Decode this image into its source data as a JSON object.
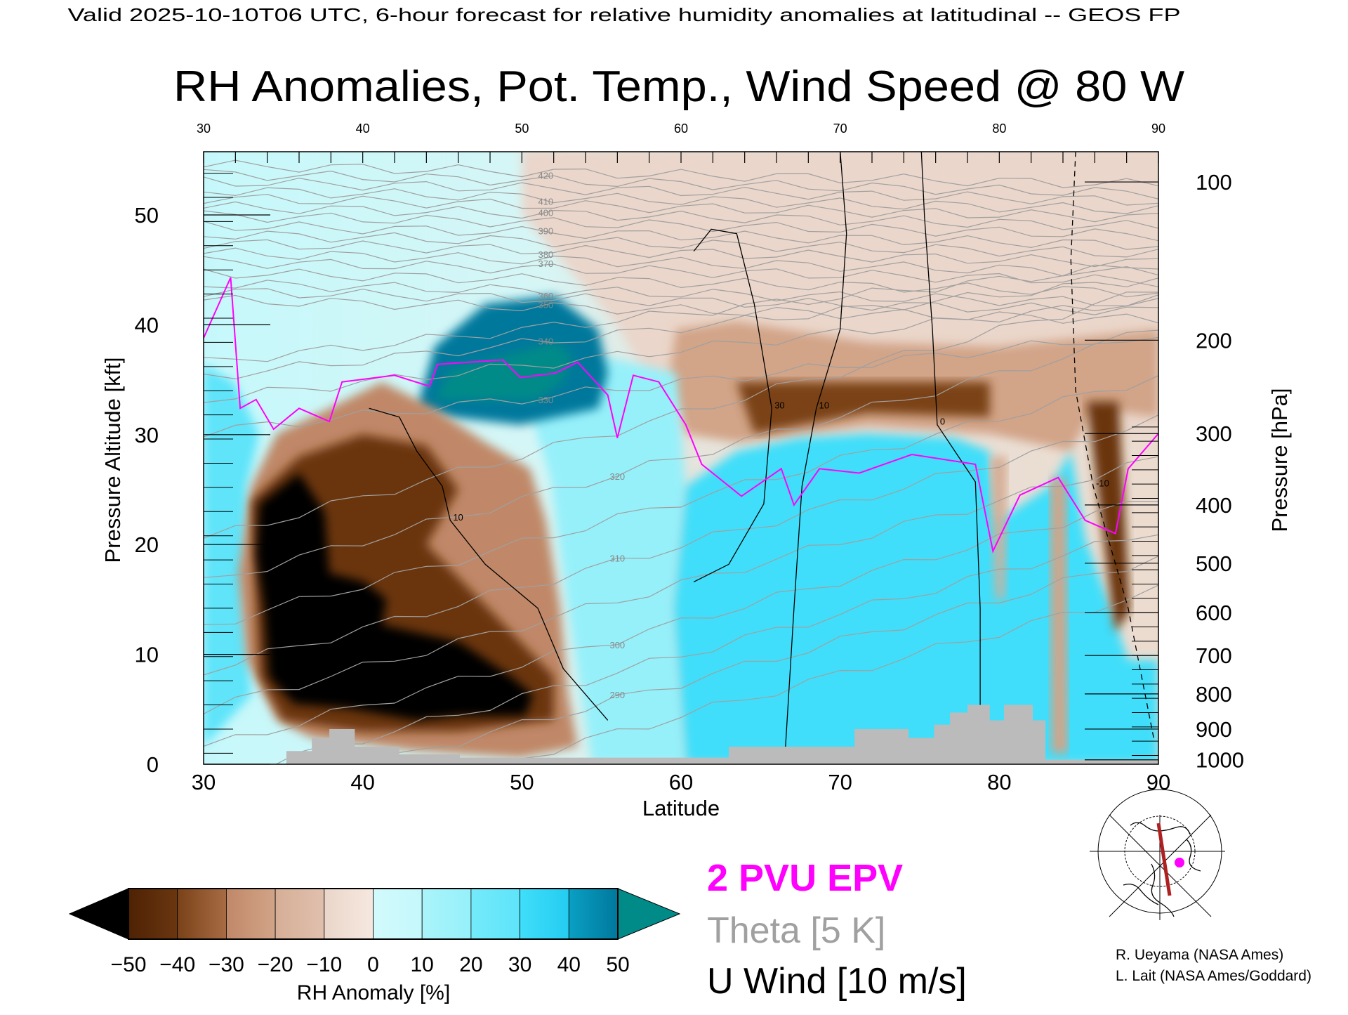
{
  "header": {
    "valid_line": "Valid 2025-10-10T06 UTC, 6-hour forecast for relative humidity anomalies at latitudinal -- GEOS FP",
    "title": "RH Anomalies, Pot. Temp., Wind Speed @ 80 W"
  },
  "chart_data": {
    "type": "heatmap",
    "title": "RH Anomalies, Pot. Temp., Wind Speed @ 80 W",
    "xlabel": "Latitude",
    "ylabel": "Pressure Altitude [kft]",
    "y2label": "Pressure [hPa]",
    "xlim": [
      30,
      90
    ],
    "ylim": [
      0,
      55.8
    ],
    "x_ticks": [
      "30",
      "40",
      "50",
      "60",
      "70",
      "80",
      "90"
    ],
    "x_tick_values": [
      30,
      40,
      50,
      60,
      70,
      80,
      90
    ],
    "y_ticks": [
      "0",
      "10",
      "20",
      "30",
      "40",
      "50"
    ],
    "y_tick_values": [
      0,
      10,
      20,
      30,
      40,
      50
    ],
    "pressure_ticks": [
      {
        "label": "100",
        "kft": 53.0
      },
      {
        "label": "200",
        "kft": 38.6
      },
      {
        "label": "300",
        "kft": 30.1
      },
      {
        "label": "400",
        "kft": 23.6
      },
      {
        "label": "500",
        "kft": 18.3
      },
      {
        "label": "600",
        "kft": 13.8
      },
      {
        "label": "700",
        "kft": 9.9
      },
      {
        "label": "800",
        "kft": 6.4
      },
      {
        "label": "900",
        "kft": 3.2
      },
      {
        "label": "1000",
        "kft": 0.4
      }
    ],
    "colors": {
      "pvu": "#ff00ff",
      "theta": "#a0a0a0",
      "wind": "#000000",
      "terrain": "#bbbbbb"
    },
    "colorbar": {
      "label": "RH Anomaly [%]",
      "tick_labels": [
        "-50",
        "-40",
        "-30",
        "-20",
        "-10",
        "0",
        "10",
        "20",
        "30",
        "40",
        "50"
      ],
      "under_color": "#000000",
      "over_color": "#008a88",
      "segments": [
        [
          "#4e2204",
          "#6a3610"
        ],
        [
          "#7a4218",
          "#a86c44"
        ],
        [
          "#c08868",
          "#d2a488"
        ],
        [
          "#d6ae96",
          "#e0c0ae"
        ],
        [
          "#ead6ca",
          "#f6e8e0"
        ],
        [
          "#d2fafc",
          "#c4f8fc"
        ],
        [
          "#aaf4fa",
          "#96f0fa"
        ],
        [
          "#74eafa",
          "#5ee4fa"
        ],
        [
          "#40defa",
          "#24ccf0"
        ],
        [
          "#0aa0c4",
          "#00789c"
        ]
      ]
    },
    "anomaly_regions": [
      {
        "rh_anomaly": -8,
        "polygon": [
          [
            50,
            56
          ],
          [
            90,
            56
          ],
          [
            90,
            30
          ],
          [
            60,
            30
          ],
          [
            56,
            40
          ],
          [
            50,
            50
          ]
        ]
      },
      {
        "rh_anomaly": -25,
        "polygon": [
          [
            59.7,
            39.6
          ],
          [
            63.5,
            40.3
          ],
          [
            71.7,
            38.4
          ],
          [
            79.9,
            38.0
          ],
          [
            90,
            39.6
          ],
          [
            90,
            31.6
          ],
          [
            85.9,
            32.4
          ],
          [
            84.5,
            28.5
          ],
          [
            79.4,
            30.1
          ],
          [
            71.7,
            30.9
          ],
          [
            66.3,
            29.7
          ],
          [
            63.5,
            29.3
          ],
          [
            60.3,
            30.1
          ],
          [
            59.2,
            34.8
          ]
        ]
      },
      {
        "rh_anomaly": -40,
        "polygon": [
          [
            63.5,
            34.8
          ],
          [
            71.7,
            34.8
          ],
          [
            79.4,
            34.8
          ],
          [
            79.4,
            31.6
          ],
          [
            71.7,
            32.0
          ],
          [
            64.6,
            30.1
          ]
        ]
      },
      {
        "rh_anomaly": 25,
        "polygon": [
          [
            30,
            36.4
          ],
          [
            31.9,
            34.8
          ],
          [
            33.5,
            30.1
          ],
          [
            32.7,
            25.3
          ],
          [
            32.5,
            14.2
          ],
          [
            33,
            6.3
          ],
          [
            30,
            1.6
          ]
        ]
      },
      {
        "rh_anomaly": 15,
        "polygon": [
          [
            49.9,
            35
          ],
          [
            55.4,
            37
          ],
          [
            59.7,
            35.6
          ],
          [
            60.3,
            25.3
          ],
          [
            59.5,
            14.2
          ],
          [
            60.3,
            0
          ],
          [
            54.4,
            0
          ],
          [
            52.9,
            14.2
          ],
          [
            51.8,
            26
          ]
        ]
      },
      {
        "rh_anomaly": 30,
        "polygon": [
          [
            60.3,
            25.3
          ],
          [
            63.5,
            28.5
          ],
          [
            67.4,
            29.7
          ],
          [
            71.7,
            30.1
          ],
          [
            77.2,
            29.7
          ],
          [
            79.4,
            28.5
          ],
          [
            79.9,
            22.2
          ],
          [
            83.2,
            25.3
          ],
          [
            84.5,
            28.5
          ],
          [
            85.4,
            20.6
          ],
          [
            87.0,
            14.2
          ],
          [
            88.1,
            9.5
          ],
          [
            90,
            9.5
          ],
          [
            90,
            0
          ],
          [
            60.3,
            0
          ],
          [
            59.5,
            14.2
          ]
        ]
      },
      {
        "rh_anomaly": 45,
        "polygon": [
          [
            43.4,
            32.4
          ],
          [
            44.5,
            38.0
          ],
          [
            47.7,
            41.9
          ],
          [
            52.1,
            42.7
          ],
          [
            54.8,
            39.6
          ],
          [
            55.4,
            35.6
          ],
          [
            54.8,
            32.4
          ],
          [
            49.9,
            30.9
          ],
          [
            45.5,
            31.6
          ]
        ]
      },
      {
        "rh_anomaly": 55,
        "polygon": [
          [
            44.5,
            33.2
          ],
          [
            45.5,
            36.0
          ],
          [
            48.8,
            37.2
          ],
          [
            52.1,
            38.4
          ],
          [
            53.2,
            37.2
          ],
          [
            52.6,
            34.8
          ],
          [
            51.0,
            33.2
          ],
          [
            47.7,
            33.1
          ]
        ]
      },
      {
        "rh_anomaly": -30,
        "polygon": [
          [
            33.0,
            25.3
          ],
          [
            34.6,
            30.1
          ],
          [
            37.9,
            32.4
          ],
          [
            41.2,
            34.8
          ],
          [
            44.5,
            32.4
          ],
          [
            47.7,
            29.3
          ],
          [
            50.5,
            26.9
          ],
          [
            51.5,
            22.2
          ],
          [
            52.4,
            14.2
          ],
          [
            52.9,
            6.3
          ],
          [
            53.5,
            1.6
          ],
          [
            49.9,
            0.6
          ],
          [
            43.4,
            1.2
          ],
          [
            36.8,
            2.4
          ],
          [
            34.6,
            4.0
          ],
          [
            32.7,
            9.5
          ],
          [
            32.2,
            17.4
          ]
        ]
      },
      {
        "rh_anomaly": -42,
        "polygon": [
          [
            33,
            24
          ],
          [
            36,
            28
          ],
          [
            40,
            30
          ],
          [
            44,
            29
          ],
          [
            46,
            25
          ],
          [
            44,
            20
          ],
          [
            48,
            14
          ],
          [
            52,
            8
          ],
          [
            52,
            4
          ],
          [
            46,
            3
          ],
          [
            40,
            3
          ],
          [
            35,
            4
          ],
          [
            33.5,
            8
          ]
        ]
      },
      {
        "rh_anomaly": -55,
        "polygon": [
          [
            33.5,
            23.7
          ],
          [
            36.0,
            26.5
          ],
          [
            37.6,
            22.9
          ],
          [
            37.9,
            17.4
          ],
          [
            40.1,
            16.6
          ],
          [
            41.5,
            15.0
          ],
          [
            41.2,
            12.7
          ],
          [
            46.1,
            11.1
          ],
          [
            49.4,
            7.9
          ],
          [
            50.7,
            6.3
          ],
          [
            50.2,
            4.4
          ],
          [
            46.1,
            4.4
          ],
          [
            43.4,
            4.0
          ],
          [
            39.0,
            5.1
          ],
          [
            35.7,
            5.5
          ],
          [
            34.1,
            7.9
          ],
          [
            33.8,
            14.2
          ],
          [
            33.3,
            19.0
          ]
        ]
      },
      {
        "rh_anomaly": -20,
        "polygon": [
          [
            79.4,
            28
          ],
          [
            80.5,
            28
          ],
          [
            80.3,
            15
          ],
          [
            79.8,
            15
          ]
        ]
      },
      {
        "rh_anomaly": -25,
        "polygon": [
          [
            83.2,
            26
          ],
          [
            84.2,
            26
          ],
          [
            84.3,
            1
          ],
          [
            83.3,
            1
          ]
        ]
      },
      {
        "rh_anomaly": -45,
        "polygon": [
          [
            85.5,
            33
          ],
          [
            87.5,
            33
          ],
          [
            88.2,
            14
          ],
          [
            87.3,
            12
          ],
          [
            86.6,
            20
          ]
        ]
      }
    ],
    "theta_levels": [
      285,
      290,
      295,
      300,
      305,
      310,
      315,
      320,
      325,
      330,
      335,
      340,
      345,
      350,
      355,
      360,
      365,
      370,
      375,
      380,
      385,
      390,
      395,
      400,
      405,
      410,
      415,
      420,
      425
    ],
    "theta_labels": [
      "290",
      "300",
      "310",
      "320",
      "330",
      "340",
      "350",
      "360",
      "370",
      "380",
      "390",
      "400",
      "410",
      "420"
    ],
    "pvu2_line": [
      [
        30,
        38.8
      ],
      [
        31.7,
        44.3
      ],
      [
        32.3,
        32.4
      ],
      [
        33.3,
        33.2
      ],
      [
        34.4,
        30.5
      ],
      [
        36.0,
        32.4
      ],
      [
        37.9,
        31.2
      ],
      [
        38.7,
        34.8
      ],
      [
        42.0,
        35.4
      ],
      [
        44.2,
        34.4
      ],
      [
        44.7,
        36.4
      ],
      [
        48.8,
        36.8
      ],
      [
        49.9,
        35.2
      ],
      [
        52.1,
        35.6
      ],
      [
        53.5,
        36.6
      ],
      [
        55.4,
        33.6
      ],
      [
        56.0,
        29.7
      ],
      [
        57.0,
        35.4
      ],
      [
        58.6,
        34.8
      ],
      [
        60.3,
        30.9
      ],
      [
        61.3,
        27.3
      ],
      [
        63.8,
        24.4
      ],
      [
        66.3,
        26.9
      ],
      [
        67.1,
        23.6
      ],
      [
        68.7,
        26.9
      ],
      [
        71.2,
        26.5
      ],
      [
        74.5,
        28.2
      ],
      [
        78.5,
        27.3
      ],
      [
        79.6,
        19.4
      ],
      [
        81.3,
        24.5
      ],
      [
        83.7,
        26.1
      ],
      [
        85.4,
        22.2
      ],
      [
        87.3,
        21.0
      ],
      [
        88.1,
        26.9
      ],
      [
        90,
        30.1
      ]
    ],
    "wind_contours": [
      {
        "value": "10",
        "dashed": false,
        "points": [
          [
            70,
            55.8
          ],
          [
            70.4,
            48.3
          ],
          [
            70,
            39.6
          ],
          [
            68.5,
            32.4
          ],
          [
            67.6,
            25.3
          ],
          [
            67.1,
            14.2
          ],
          [
            66.5,
            0
          ]
        ]
      },
      {
        "value": "0",
        "dashed": false,
        "points": [
          [
            75.1,
            55.8
          ],
          [
            75.3,
            49.8
          ],
          [
            75.8,
            39.6
          ],
          [
            76.1,
            30.9
          ],
          [
            78.5,
            25.7
          ],
          [
            78.8,
            14.2
          ],
          [
            78.8,
            0
          ]
        ]
      },
      {
        "value": "10",
        "dashed": false,
        "points": [
          [
            40.4,
            32.4
          ],
          [
            42.3,
            31.6
          ],
          [
            43.4,
            28.5
          ],
          [
            45,
            25.3
          ],
          [
            45.5,
            22.2
          ],
          [
            47.7,
            18.2
          ],
          [
            51,
            14.2
          ],
          [
            52.6,
            8.7
          ],
          [
            55.4,
            4.0
          ]
        ]
      },
      {
        "value": "-10",
        "dashed": true,
        "points": [
          [
            84.8,
            55.8
          ],
          [
            84.5,
            45.9
          ],
          [
            84.8,
            34
          ],
          [
            85.9,
            25.3
          ],
          [
            88.1,
            14.2
          ],
          [
            89.7,
            2.4
          ]
        ]
      },
      {
        "value": "30",
        "dashed": false,
        "points": [
          [
            60.8,
            46.7
          ],
          [
            61.9,
            48.7
          ],
          [
            63.5,
            48.3
          ],
          [
            64.6,
            41.9
          ],
          [
            65.7,
            32.4
          ],
          [
            65.2,
            23.7
          ],
          [
            63,
            18.2
          ],
          [
            60.8,
            16.6
          ]
        ]
      }
    ],
    "terrain_steps": [
      [
        35.2,
        1.2
      ],
      [
        36.8,
        2.4
      ],
      [
        37.9,
        3.2
      ],
      [
        39.5,
        1.6
      ],
      [
        42.3,
        0.9
      ],
      [
        46.1,
        0.6
      ],
      [
        55.4,
        0.6
      ],
      [
        63.0,
        1.6
      ],
      [
        70.9,
        3.2
      ],
      [
        74.3,
        2.4
      ],
      [
        75.9,
        3.6
      ],
      [
        76.9,
        4.7
      ],
      [
        78.0,
        5.4
      ],
      [
        79.4,
        4.0
      ],
      [
        80.3,
        5.4
      ],
      [
        82.1,
        4.0
      ],
      [
        82.9,
        0.4
      ],
      [
        90,
        0.4
      ]
    ]
  },
  "legend": {
    "pvu": "2 PVU EPV",
    "theta": "Theta [5 K]",
    "wind": "U Wind [10 m/s]"
  },
  "inset_map": {
    "section_color": "#b02020",
    "marker_color": "#ff00ff"
  },
  "credits": [
    "R. Ueyama (NASA Ames)",
    "L. Lait (NASA Ames/Goddard)"
  ]
}
